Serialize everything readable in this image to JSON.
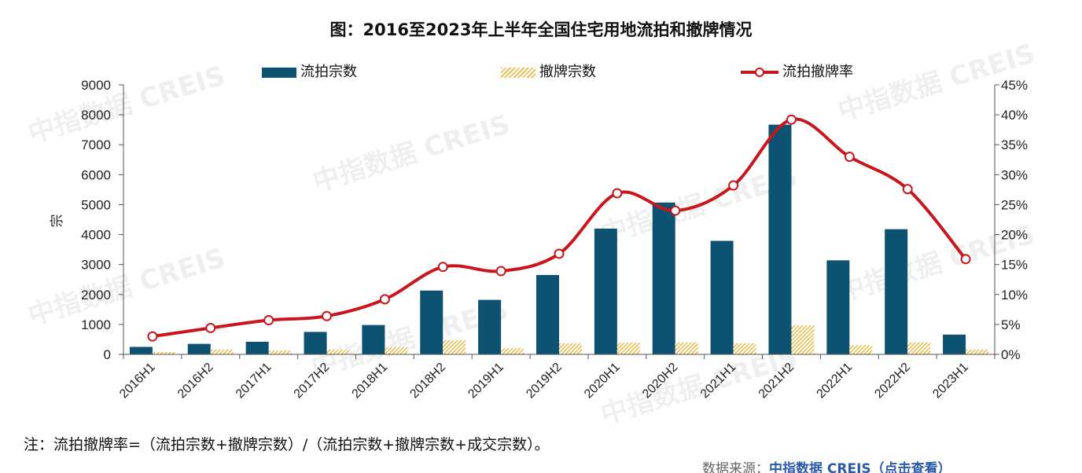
{
  "watermark": "中指数据 CREIS",
  "chart_data": {
    "type": "bar",
    "title": "图：2016至2023年上半年全国住宅用地流拍和撤牌情况",
    "categories": [
      "2016H1",
      "2016H2",
      "2017H1",
      "2017H2",
      "2018H1",
      "2018H2",
      "2019H1",
      "2019H2",
      "2020H1",
      "2020H2",
      "2021H1",
      "2021H2",
      "2022H1",
      "2022H2",
      "2023H1"
    ],
    "series": [
      {
        "name": "流拍宗数",
        "type": "bar",
        "axis": "left",
        "color": "#0E5272",
        "values": [
          250,
          350,
          420,
          750,
          980,
          2130,
          1820,
          2650,
          4200,
          5070,
          3790,
          7670,
          3140,
          4180,
          660
        ]
      },
      {
        "name": "撤牌宗数",
        "type": "bar",
        "axis": "left",
        "color": "#EDB840",
        "fill": "hatched",
        "values": [
          80,
          160,
          130,
          160,
          240,
          470,
          210,
          370,
          390,
          400,
          370,
          970,
          310,
          400,
          160
        ]
      },
      {
        "name": "流拍撤牌率",
        "type": "line",
        "axis": "right",
        "color": "#C8161D",
        "values": [
          3.0,
          4.4,
          5.7,
          6.4,
          9.2,
          14.6,
          13.9,
          16.8,
          26.9,
          24.0,
          28.2,
          39.2,
          33.0,
          27.6,
          15.9
        ]
      }
    ],
    "ylabel": "宗",
    "ylim": [
      0,
      9000
    ],
    "yticks": [
      "0",
      "1000",
      "2000",
      "3000",
      "4000",
      "5000",
      "6000",
      "7000",
      "8000",
      "9000"
    ],
    "y2lim": [
      0,
      45
    ],
    "y2ticks": [
      "0%",
      "5%",
      "10%",
      "15%",
      "20%",
      "25%",
      "30%",
      "35%",
      "40%",
      "45%"
    ],
    "legend": "top",
    "grid": false
  },
  "note": "注：流拍撤牌率=（流拍宗数+撤牌宗数）/（流拍宗数+撤牌宗数+成交宗数）。",
  "source": {
    "label": "数据来源：",
    "link": "中指数据 CREIS（点击查看）"
  }
}
